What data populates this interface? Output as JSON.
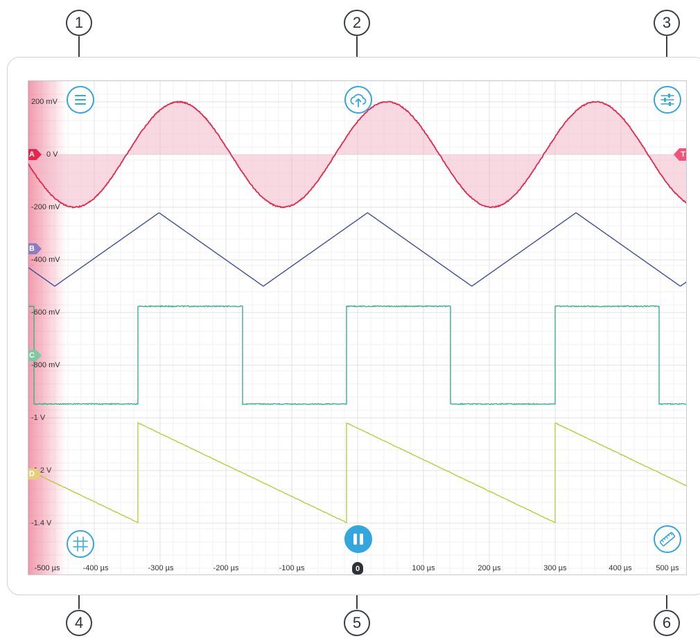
{
  "callouts": [
    "1",
    "2",
    "3",
    "4",
    "5",
    "6"
  ],
  "voltage_labels": [
    "200 mV",
    "0 V",
    "-200 mV",
    "-400 mV",
    "-600 mV",
    "-800 mV",
    "-1 V",
    "-1.2 V",
    "-1.4 V"
  ],
  "time_labels": [
    "-500 µs",
    "-400 µs",
    "-300 µs",
    "-200 µs",
    "-100 µs",
    "0",
    "100 µs",
    "200 µs",
    "300 µs",
    "400 µs",
    "500 µs"
  ],
  "channels": [
    {
      "label": "A",
      "color": "#e4274d",
      "waveform": "sine"
    },
    {
      "label": "B",
      "color": "#8b7dc4",
      "waveform": "triangle"
    },
    {
      "label": "C",
      "color": "#7ec9a4",
      "waveform": "square"
    },
    {
      "label": "D",
      "color": "#e7cf7a",
      "waveform": "sawtooth"
    }
  ],
  "trigger_marker": "T",
  "trace_colors": {
    "A": "#e4274d",
    "B": "#3d4e9c",
    "C": "#35b48a",
    "D": "#b4cc2e"
  },
  "accent_color": "#32a6dd",
  "buttons": {
    "menu": "menu-icon",
    "export": "cloud-upload-icon",
    "settings": "sliders-icon",
    "grid": "grid-icon",
    "pause": "pause-icon",
    "measure": "ruler-icon"
  }
}
